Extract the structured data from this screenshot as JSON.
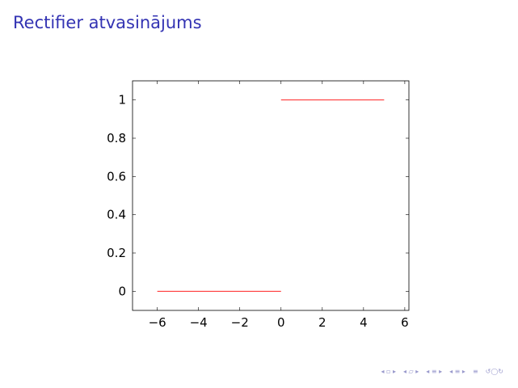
{
  "slide": {
    "title": "Rectifier atvasinājums"
  },
  "chart_data": {
    "type": "line",
    "title": "",
    "xlabel": "",
    "ylabel": "",
    "xlim": [
      -7.2,
      6.2
    ],
    "ylim": [
      -0.1,
      1.1
    ],
    "xticks": [
      -6,
      -4,
      -2,
      0,
      2,
      4,
      6
    ],
    "xtick_labels": [
      "−6",
      "−4",
      "−2",
      "0",
      "2",
      "4",
      "6"
    ],
    "yticks": [
      0,
      0.2,
      0.4,
      0.6,
      0.8,
      1
    ],
    "ytick_labels": [
      "0",
      "0.2",
      "0.4",
      "0.6",
      "0.8",
      "1"
    ],
    "grid": false,
    "line_color": "#ff0000",
    "series": [
      {
        "segments": [
          {
            "x": [
              -6,
              0
            ],
            "y": [
              0,
              0
            ]
          },
          {
            "x": [
              0,
              5
            ],
            "y": [
              1,
              1
            ]
          }
        ]
      }
    ]
  },
  "nav": {
    "icons": [
      "frame-prev-icon",
      "frame-next-icon",
      "subsection-prev-icon",
      "subsection-next-icon",
      "section-prev-icon",
      "section-next-icon",
      "doc-icon",
      "search-icon"
    ]
  }
}
